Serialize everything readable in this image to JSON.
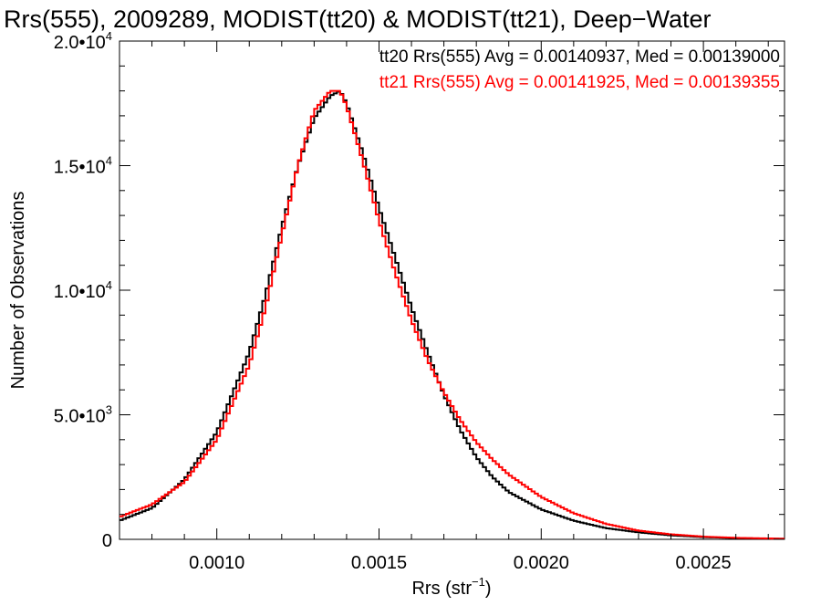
{
  "chart_data": {
    "type": "line",
    "title": "Rrs(555), 2009289, MODIST(tt20) & MODIST(tt21), Deep−Water",
    "xlabel": "Rrs (str",
    "xlabel_exp": "−1",
    "xlabel_close": ")",
    "ylabel": "Number of Observations",
    "xlim": [
      0.0007,
      0.00275
    ],
    "ylim": [
      0,
      20000
    ],
    "x_ticks": [
      {
        "value": 0.001,
        "label": "0.0010"
      },
      {
        "value": 0.0015,
        "label": "0.0015"
      },
      {
        "value": 0.002,
        "label": "0.0020"
      },
      {
        "value": 0.0025,
        "label": "0.0025"
      }
    ],
    "y_ticks": [
      {
        "value": 0,
        "mantissa": "0",
        "exp": ""
      },
      {
        "value": 5000,
        "mantissa": "5.0•10",
        "exp": "3"
      },
      {
        "value": 10000,
        "mantissa": "1.0•10",
        "exp": "4"
      },
      {
        "value": 15000,
        "mantissa": "1.5•10",
        "exp": "4"
      },
      {
        "value": 20000,
        "mantissa": "2.0•10",
        "exp": "4"
      }
    ],
    "legend_position": "top-right",
    "grid": false,
    "series": [
      {
        "name": "tt20 Rrs(555) Avg = 0.00140937, Med = 0.00139000",
        "color": "#000000",
        "points": [
          [
            0.0007,
            750
          ],
          [
            0.0008,
            1250
          ],
          [
            0.0009,
            2400
          ],
          [
            0.001,
            4300
          ],
          [
            0.0011,
            7500
          ],
          [
            0.00115,
            9800
          ],
          [
            0.0012,
            12500
          ],
          [
            0.00125,
            15000
          ],
          [
            0.0013,
            16900
          ],
          [
            0.00135,
            17800
          ],
          [
            0.00138,
            18000
          ],
          [
            0.0014,
            17500
          ],
          [
            0.00145,
            15500
          ],
          [
            0.0015,
            13300
          ],
          [
            0.00155,
            11300
          ],
          [
            0.0016,
            9300
          ],
          [
            0.00165,
            7500
          ],
          [
            0.0017,
            5800
          ],
          [
            0.00175,
            4400
          ],
          [
            0.0018,
            3300
          ],
          [
            0.00185,
            2500
          ],
          [
            0.0019,
            1900
          ],
          [
            0.002,
            1200
          ],
          [
            0.0021,
            750
          ],
          [
            0.0022,
            450
          ],
          [
            0.0023,
            280
          ],
          [
            0.0024,
            160
          ],
          [
            0.0025,
            90
          ],
          [
            0.0026,
            50
          ],
          [
            0.00275,
            20
          ]
        ]
      },
      {
        "name": "tt21 Rrs(555) Avg = 0.00141925, Med = 0.00139355",
        "color": "#ff0000",
        "points": [
          [
            0.0007,
            900
          ],
          [
            0.0008,
            1400
          ],
          [
            0.0009,
            2300
          ],
          [
            0.001,
            4000
          ],
          [
            0.0011,
            7000
          ],
          [
            0.00115,
            9300
          ],
          [
            0.0012,
            12200
          ],
          [
            0.00125,
            15000
          ],
          [
            0.0013,
            17200
          ],
          [
            0.00135,
            18000
          ],
          [
            0.00138,
            18000
          ],
          [
            0.0014,
            17400
          ],
          [
            0.00145,
            15200
          ],
          [
            0.0015,
            12800
          ],
          [
            0.00155,
            10700
          ],
          [
            0.0016,
            8800
          ],
          [
            0.00165,
            7200
          ],
          [
            0.0017,
            5900
          ],
          [
            0.00175,
            4800
          ],
          [
            0.0018,
            3900
          ],
          [
            0.00185,
            3200
          ],
          [
            0.0019,
            2600
          ],
          [
            0.002,
            1700
          ],
          [
            0.0021,
            1050
          ],
          [
            0.0022,
            620
          ],
          [
            0.0023,
            350
          ],
          [
            0.0024,
            200
          ],
          [
            0.0025,
            110
          ],
          [
            0.0026,
            60
          ],
          [
            0.00275,
            25
          ]
        ]
      }
    ]
  }
}
